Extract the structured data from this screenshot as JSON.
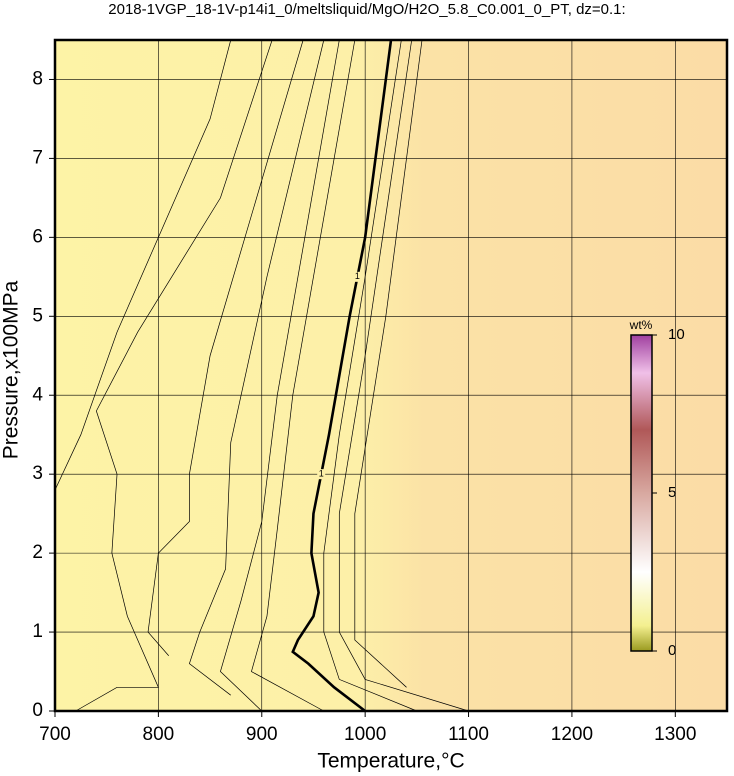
{
  "chart_data": {
    "type": "contour",
    "title": "2018-1VGP_18-1V-p14i1_0/meltsliquid/MgO/H2O_5.8_C0.001_0_PT, dz=0.1:",
    "x_label": "Temperature,°C",
    "y_label": "Pressure,x100MPa",
    "xlim": [
      700,
      1350
    ],
    "ylim": [
      0,
      8.5
    ],
    "xticks": [
      700,
      800,
      900,
      1000,
      1100,
      1200,
      1300
    ],
    "yticks": [
      0,
      1,
      2,
      3,
      4,
      5,
      6,
      7,
      8
    ],
    "grid": true,
    "contours": [
      {
        "x": [
          700,
          725,
          760,
          800,
          850,
          870
        ],
        "y": [
          2.8,
          3.5,
          4.8,
          6,
          7.5,
          8.5
        ]
      },
      {
        "x": [
          720,
          760,
          800,
          770,
          755,
          760,
          740,
          780,
          860,
          910
        ],
        "y": [
          0,
          0.3,
          0.3,
          1.2,
          2,
          3,
          3.8,
          4.8,
          6.5,
          8.5
        ]
      },
      {
        "x": [
          810,
          790,
          800,
          830,
          830,
          850,
          895,
          940
        ],
        "y": [
          0.7,
          1,
          2,
          2.4,
          3,
          4.5,
          6.5,
          8.5
        ]
      },
      {
        "x": [
          870,
          830,
          840,
          865,
          870,
          905,
          960
        ],
        "y": [
          0.2,
          0.6,
          1,
          1.8,
          3.4,
          5.5,
          8.5
        ]
      },
      {
        "x": [
          900,
          860,
          880,
          900,
          915,
          935,
          975
        ],
        "y": [
          0,
          0.5,
          1.4,
          2.4,
          4,
          5.5,
          8.5
        ]
      },
      {
        "x": [
          960,
          890,
          905,
          915,
          930,
          950,
          990
        ],
        "y": [
          0,
          0.5,
          1.2,
          2.3,
          4,
          5.5,
          8.5
        ]
      },
      {
        "x": [
          1000,
          970,
          945,
          930,
          935,
          950,
          955,
          948,
          950,
          965,
          985,
          1000,
          1025
        ],
        "y": [
          0,
          0.3,
          0.6,
          0.75,
          0.9,
          1.2,
          1.5,
          2,
          2.5,
          3.5,
          5,
          6,
          8.5
        ],
        "bold": true,
        "label": "1"
      },
      {
        "x": [
          1050,
          975,
          960,
          960,
          975,
          1000,
          1035
        ],
        "y": [
          0,
          0.4,
          1,
          2,
          3.5,
          5.5,
          8.5
        ]
      },
      {
        "x": [
          1100,
          1000,
          975,
          975,
          1000,
          1045
        ],
        "y": [
          0,
          0.4,
          1,
          2.5,
          4.5,
          8.5
        ]
      },
      {
        "x": [
          1040,
          990,
          990,
          1020,
          1055
        ],
        "y": [
          0.3,
          0.9,
          2.5,
          5,
          8.5
        ]
      }
    ],
    "colorbar": {
      "label": "wt%",
      "lim": [
        0,
        10
      ],
      "ticks": [
        0,
        5,
        10
      ]
    }
  }
}
